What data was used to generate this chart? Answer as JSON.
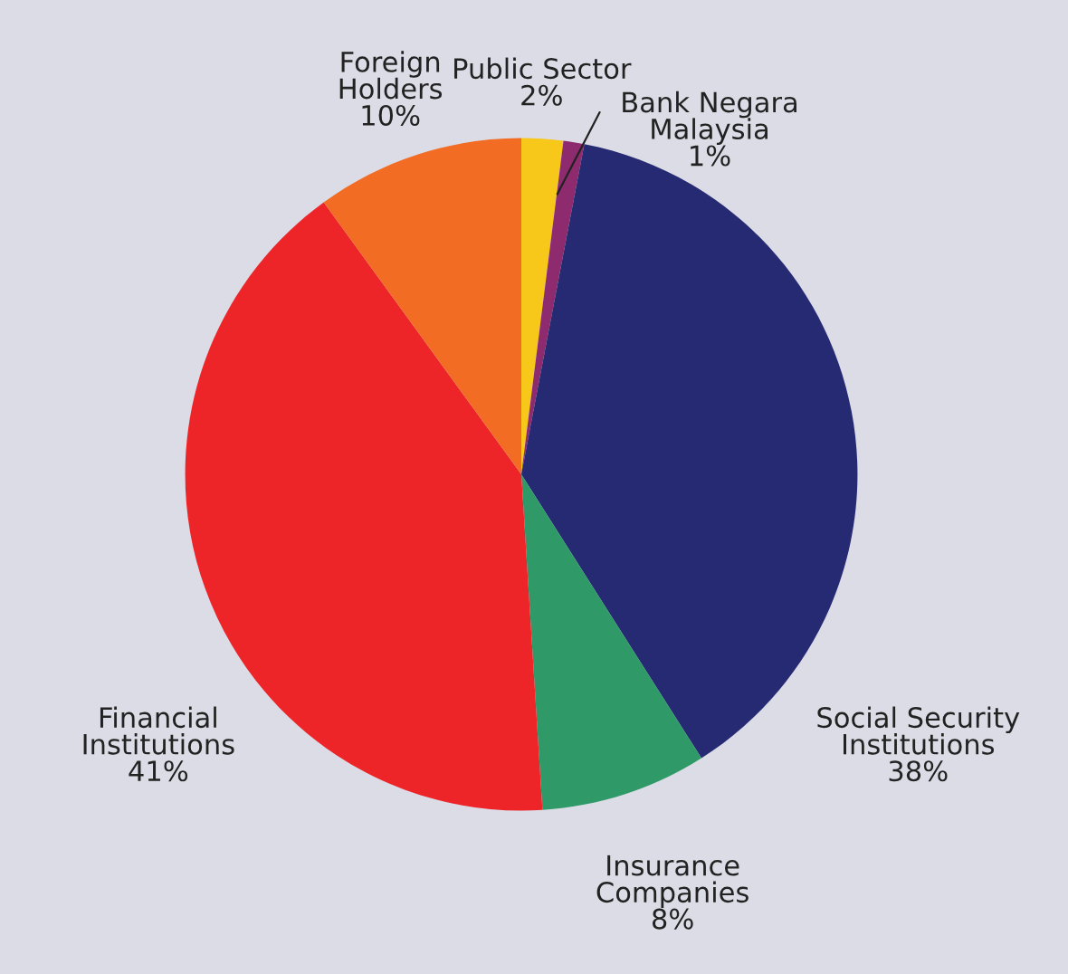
{
  "chart_data": {
    "type": "pie",
    "categories": [
      "Public Sector",
      "Bank Negara\nMalaysia",
      "Social Security\nInstitutions",
      "Insurance\nCompanies",
      "Financial\nInstitutions",
      "Foreign\nHolders"
    ],
    "values": [
      2,
      1,
      38,
      8,
      41,
      10
    ],
    "value_labels": [
      "2%",
      "1%",
      "38%",
      "8%",
      "41%",
      "10%"
    ],
    "colors": [
      "#f7c81a",
      "#8e2a6e",
      "#262a72",
      "#2f9a68",
      "#ee2528",
      "#f26c23"
    ],
    "legend": false
  }
}
